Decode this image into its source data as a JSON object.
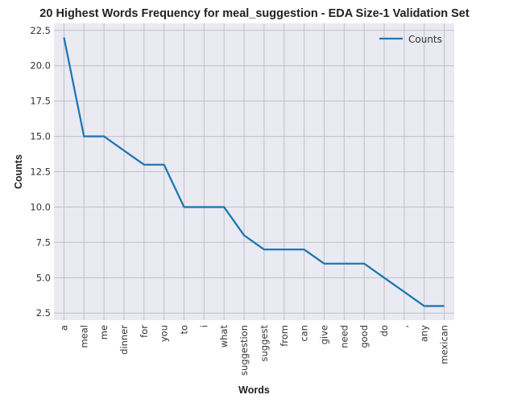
{
  "chart_data": {
    "type": "line",
    "title": "20 Highest Words Frequency for meal_suggestion - EDA Size-1 Validation Set",
    "xlabel": "Words",
    "ylabel": "Counts",
    "categories": [
      "a",
      "meal",
      "me",
      "dinner",
      "for",
      "you",
      "to",
      "i",
      "what",
      "suggestion",
      "suggest",
      "from",
      "can",
      "give",
      "need",
      "good",
      "do",
      ",",
      "any",
      "mexican"
    ],
    "series": [
      {
        "name": "Counts",
        "values": [
          22,
          15,
          15,
          14,
          13,
          13,
          10,
          10,
          10,
          8,
          7,
          7,
          7,
          6,
          6,
          6,
          5,
          4,
          3,
          3
        ]
      }
    ],
    "ylim": [
      2.0,
      23.0
    ],
    "yticks": [
      2.5,
      5.0,
      7.5,
      10.0,
      12.5,
      15.0,
      17.5,
      20.0,
      22.5
    ],
    "ytick_labels": [
      "2.5",
      "5.0",
      "7.5",
      "10.0",
      "12.5",
      "15.0",
      "17.5",
      "20.0",
      "22.5"
    ],
    "grid": true,
    "legend_position": "top-right",
    "colors": {
      "line": "#1f77b4",
      "plot_background": "#eaeaf2",
      "grid": "#c0c0c8"
    }
  }
}
